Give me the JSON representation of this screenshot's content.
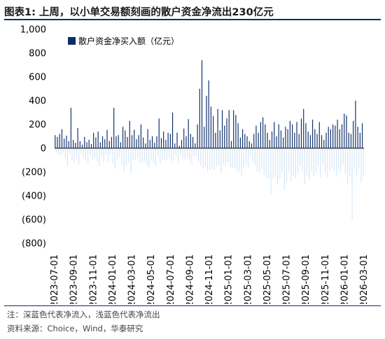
{
  "header": {
    "title": "图表1:  上周，以小单交易额刻画的散户资金净流出230亿元"
  },
  "footer": {
    "note": "注：深蓝色代表净流入，浅蓝色代表净流出",
    "source": "资料来源：Choice，Wind，华泰研究"
  },
  "colors": {
    "inflow": "#0b2d6b",
    "outflow": "#d6e6f5"
  },
  "chart_data": {
    "type": "bar",
    "legend": {
      "label": "散户资金净买入额（亿元）",
      "placement": "top-left"
    },
    "ylim": [
      -800,
      1000
    ],
    "yticks": [
      -800,
      -600,
      -400,
      -200,
      0,
      200,
      400,
      600,
      800,
      1000
    ],
    "ytick_labels": [
      "(800)",
      "(600)",
      "(400)",
      "(200)",
      "0",
      "200",
      "400",
      "600",
      "800",
      "1,000"
    ],
    "xticks": [
      "2023-07-01",
      "2023-09-01",
      "2023-11-01",
      "2024-01-01",
      "2024-03-01",
      "2024-05-01",
      "2024-07-01",
      "2024-09-01",
      "2024-11-01",
      "2025-01-01",
      "2025-03-01",
      "2025-05-01",
      "2025-07-01",
      "2025-09-01",
      "2025-11-01",
      "2026-01-01",
      "2026-03-01"
    ],
    "values": [
      110,
      -40,
      95,
      -55,
      120,
      -60,
      160,
      -35,
      80,
      -90,
      105,
      -150,
      60,
      -50,
      340,
      -100,
      70,
      -120,
      45,
      -90,
      170,
      -140,
      60,
      -45,
      30,
      -80,
      95,
      -105,
      50,
      -130,
      70,
      -60,
      35,
      -95,
      130,
      -90,
      90,
      -110,
      140,
      -150,
      50,
      -80,
      100,
      -120,
      75,
      -60,
      155,
      -115,
      60,
      -55,
      95,
      -130,
      340,
      -170,
      100,
      -95,
      110,
      -75,
      50,
      -140,
      180,
      -200,
      150,
      -150,
      95,
      -120,
      230,
      -220,
      110,
      -100,
      155,
      -95,
      75,
      -80,
      110,
      -120,
      200,
      -130,
      90,
      -110,
      40,
      -140,
      160,
      -165,
      70,
      -95,
      100,
      -120,
      45,
      -150,
      100,
      -70,
      250,
      -130,
      85,
      -95,
      140,
      -105,
      70,
      -95,
      130,
      -80,
      120,
      -110,
      300,
      -100,
      40,
      -65,
      130,
      -120,
      20,
      -60,
      70,
      -90,
      165,
      -95,
      100,
      -80,
      245,
      -110,
      120,
      -135,
      95,
      -70,
      40,
      -65,
      200,
      -120,
      500,
      -150,
      740,
      -175,
      180,
      -155,
      440,
      -200,
      570,
      -180,
      350,
      -170,
      270,
      -185,
      130,
      -150,
      330,
      -150,
      150,
      -215,
      320,
      -140,
      190,
      -150,
      250,
      -120,
      320,
      -160,
      60,
      -165,
      320,
      -170,
      280,
      -200,
      210,
      -195,
      90,
      -230,
      160,
      -170,
      120,
      -145,
      100,
      -165,
      60,
      -75,
      40,
      -115,
      120,
      -140,
      190,
      -200,
      130,
      -210,
      220,
      -175,
      260,
      -220,
      200,
      -250,
      130,
      -250,
      70,
      -390,
      140,
      -255,
      220,
      -240,
      100,
      -310,
      200,
      -260,
      150,
      -200,
      90,
      -355,
      180,
      -290,
      160,
      -200,
      230,
      -280,
      200,
      -240,
      130,
      -255,
      220,
      -210,
      120,
      -150,
      250,
      -200,
      330,
      -300,
      210,
      -225,
      140,
      -260,
      110,
      -195,
      240,
      -235,
      160,
      -210,
      120,
      -150,
      220,
      -240,
      110,
      -130,
      70,
      -215,
      130,
      -245,
      180,
      -200,
      160,
      -170,
      200,
      -190,
      190,
      -240,
      240,
      -180,
      160,
      -200,
      200,
      -140,
      290,
      -220,
      275,
      -310,
      130,
      -240,
      120,
      -600,
      230,
      -175,
      400,
      -240,
      180,
      -170,
      130,
      -290,
      210,
      -230
    ]
  }
}
